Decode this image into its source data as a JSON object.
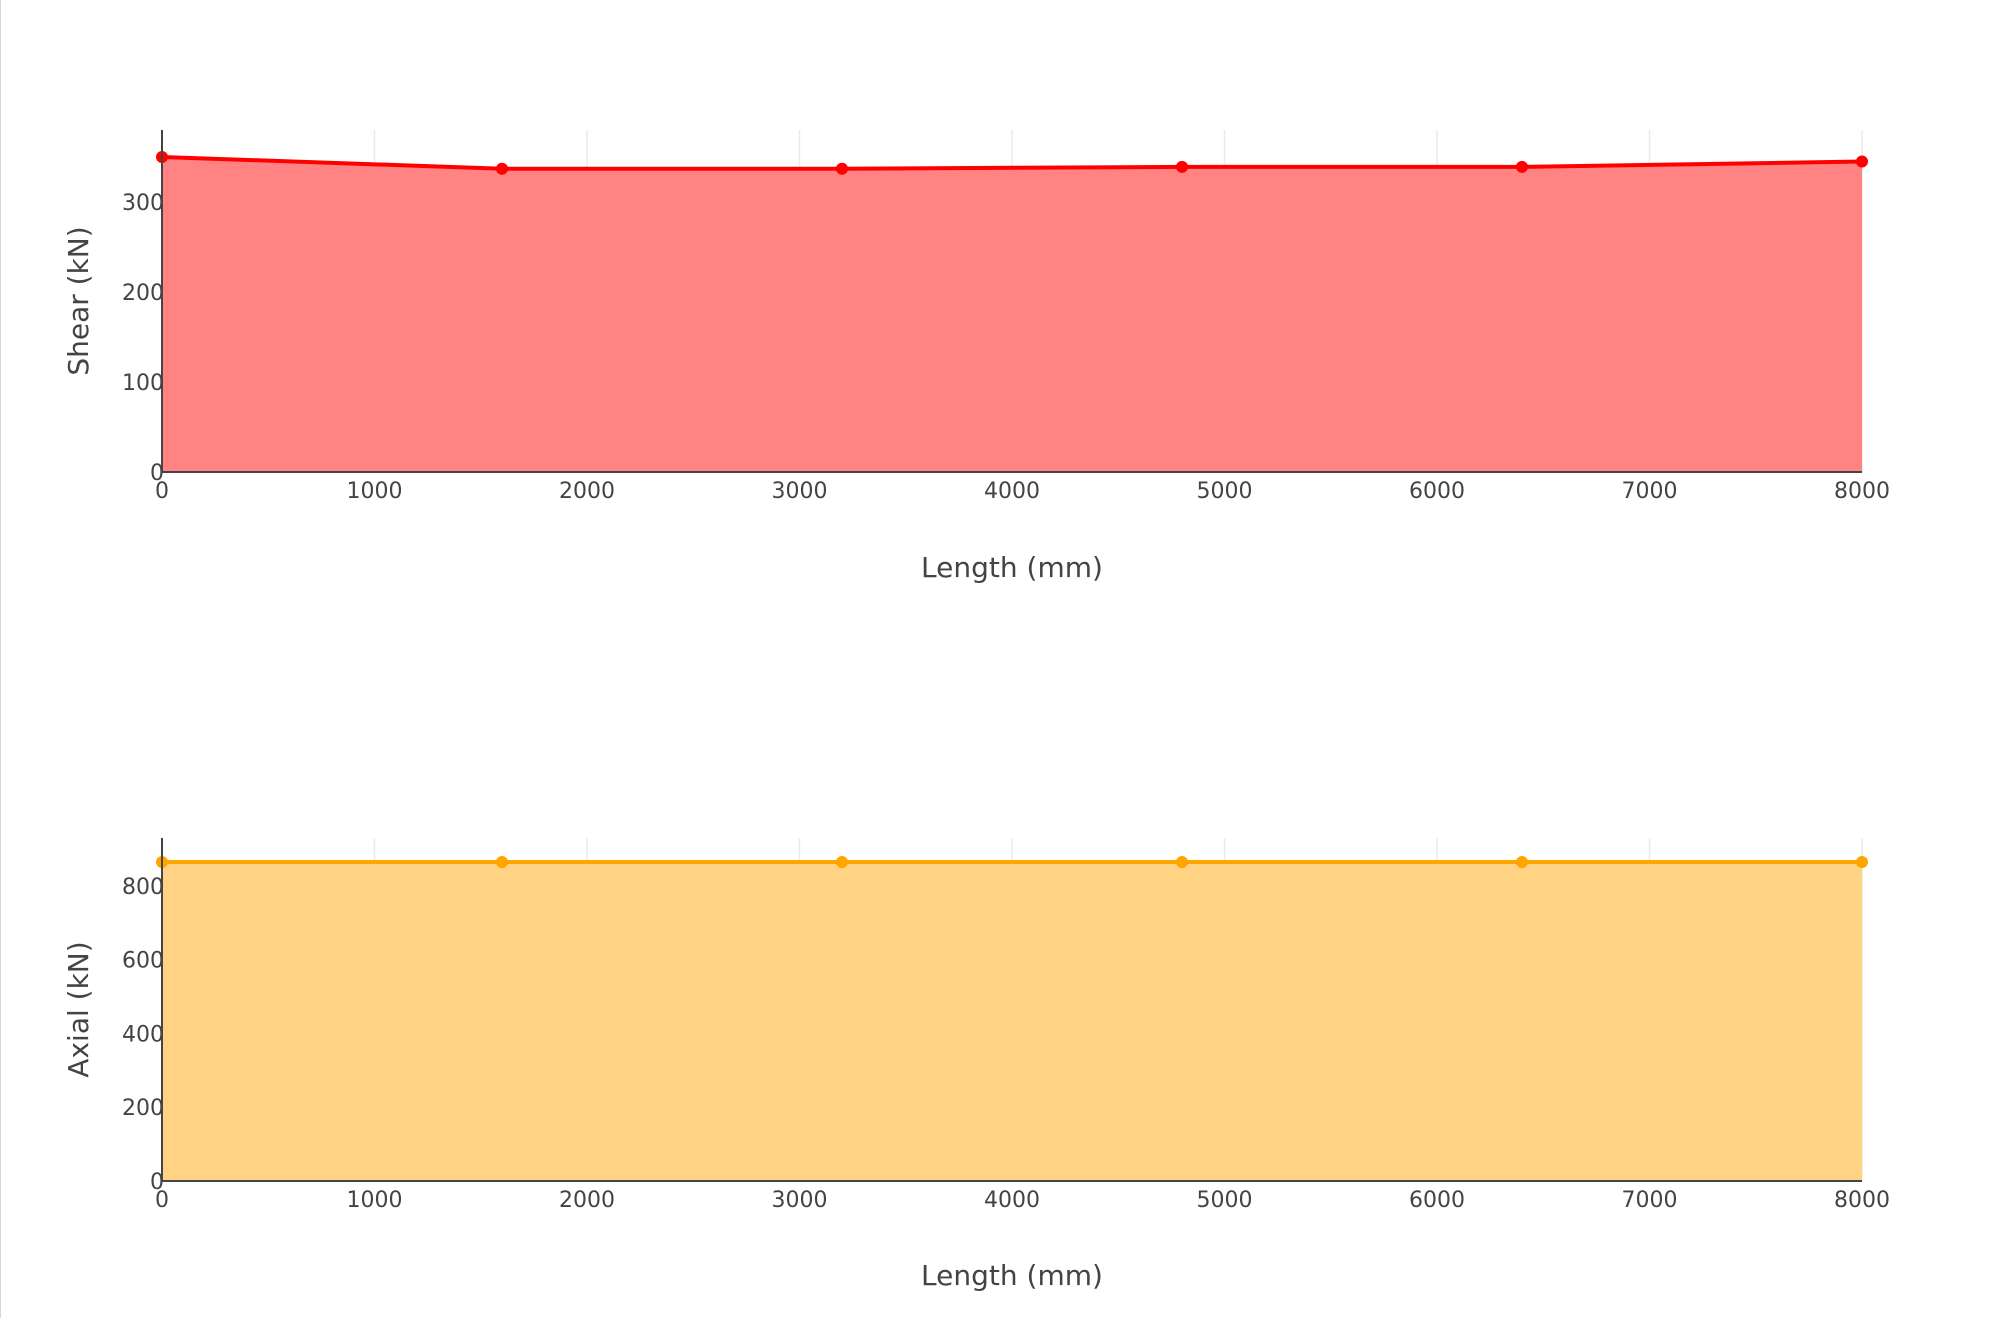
{
  "chart_data": [
    {
      "type": "area",
      "xlabel": "Length (mm)",
      "ylabel": "Shear (kN)",
      "xlim": [
        0,
        8000
      ],
      "ylim": [
        0,
        380
      ],
      "x_ticks": [
        0,
        1000,
        2000,
        3000,
        4000,
        5000,
        6000,
        7000,
        8000
      ],
      "y_ticks": [
        0,
        100,
        200,
        300
      ],
      "grid": true,
      "colors": {
        "line": "#ff0000",
        "fill": "#ff7f7f"
      },
      "series": [
        {
          "x": [
            0,
            1600,
            3200,
            4800,
            6400,
            8000
          ],
          "values": [
            350,
            337,
            337,
            339,
            339,
            345
          ]
        }
      ]
    },
    {
      "type": "area",
      "xlabel": "Length (mm)",
      "ylabel": "Axial (kN)",
      "xlim": [
        0,
        8000
      ],
      "ylim": [
        0,
        930
      ],
      "x_ticks": [
        0,
        1000,
        2000,
        3000,
        4000,
        5000,
        6000,
        7000,
        8000
      ],
      "y_ticks": [
        0,
        200,
        400,
        600,
        800
      ],
      "grid": true,
      "colors": {
        "line": "#ffa500",
        "fill": "#ffd27f"
      },
      "series": [
        {
          "x": [
            0,
            1600,
            3200,
            4800,
            6400,
            8000
          ],
          "values": [
            865,
            865,
            865,
            865,
            865,
            865
          ]
        }
      ]
    }
  ]
}
